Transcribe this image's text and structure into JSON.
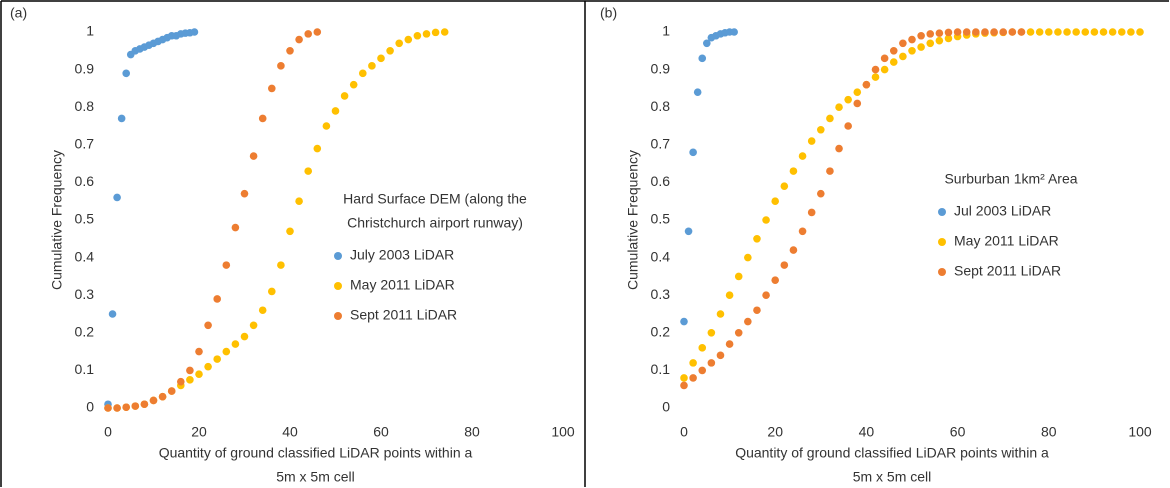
{
  "chart_data": [
    {
      "type": "scatter",
      "panel_label": "(a)",
      "ylabel": "Cumulative Frequency",
      "xlabel": [
        "Quantity of ground classified LiDAR points within a",
        "5m x 5m cell"
      ],
      "legend_title": [
        "Hard Surface DEM (along the",
        "Christchurch airport runway)"
      ],
      "xlim": [
        0,
        100
      ],
      "xticks": [
        0,
        20,
        40,
        60,
        80,
        100
      ],
      "ylim": [
        0,
        1
      ],
      "yticks": [
        0,
        0.1,
        0.2,
        0.3,
        0.4,
        0.5,
        0.6,
        0.7,
        0.8,
        0.9,
        1
      ],
      "series": [
        {
          "name": "July 2003 LiDAR",
          "color": "#5b9bd5",
          "x": [
            0,
            1,
            2,
            3,
            4,
            5,
            6,
            7,
            8,
            9,
            10,
            11,
            12,
            13,
            14,
            15,
            16,
            17,
            18,
            19
          ],
          "values": [
            0.01,
            0.25,
            0.56,
            0.77,
            0.89,
            0.94,
            0.95,
            0.955,
            0.96,
            0.965,
            0.97,
            0.975,
            0.98,
            0.985,
            0.99,
            0.99,
            0.995,
            0.997,
            0.998,
            1
          ]
        },
        {
          "name": "May 2011 LiDAR",
          "color": "#ffc000",
          "x": [
            0,
            2,
            4,
            6,
            8,
            10,
            12,
            14,
            16,
            18,
            20,
            22,
            24,
            26,
            28,
            30,
            32,
            34,
            36,
            38,
            40,
            42,
            44,
            46,
            48,
            50,
            52,
            54,
            56,
            58,
            60,
            62,
            64,
            66,
            68,
            70,
            72,
            74
          ],
          "values": [
            0,
            0,
            0.002,
            0.005,
            0.01,
            0.02,
            0.03,
            0.045,
            0.06,
            0.075,
            0.09,
            0.11,
            0.13,
            0.15,
            0.17,
            0.19,
            0.22,
            0.26,
            0.31,
            0.38,
            0.47,
            0.55,
            0.63,
            0.69,
            0.75,
            0.79,
            0.83,
            0.86,
            0.89,
            0.91,
            0.93,
            0.95,
            0.97,
            0.98,
            0.99,
            0.995,
            0.999,
            1
          ]
        },
        {
          "name": "Sept 2011 LiDAR",
          "color": "#ed7d31",
          "x": [
            0,
            2,
            4,
            6,
            8,
            10,
            12,
            14,
            16,
            18,
            20,
            22,
            24,
            26,
            28,
            30,
            32,
            34,
            36,
            38,
            40,
            42,
            44,
            46
          ],
          "values": [
            0,
            0,
            0.002,
            0.005,
            0.01,
            0.02,
            0.03,
            0.045,
            0.07,
            0.1,
            0.15,
            0.22,
            0.29,
            0.38,
            0.48,
            0.57,
            0.67,
            0.77,
            0.85,
            0.91,
            0.95,
            0.98,
            0.995,
            1
          ]
        }
      ]
    },
    {
      "type": "scatter",
      "panel_label": "(b)",
      "ylabel": "Cumulative Frequency",
      "xlabel": [
        "Quantity of ground classified LiDAR points within a",
        "5m x 5m cell"
      ],
      "legend_title": [
        "Surburban 1km² Area"
      ],
      "xlim": [
        0,
        100
      ],
      "xticks": [
        0,
        20,
        40,
        60,
        80,
        100
      ],
      "ylim": [
        0,
        1
      ],
      "yticks": [
        0,
        0.1,
        0.2,
        0.3,
        0.4,
        0.5,
        0.6,
        0.7,
        0.8,
        0.9,
        1
      ],
      "series": [
        {
          "name": "Jul 2003 LiDAR",
          "color": "#5b9bd5",
          "x": [
            0,
            1,
            2,
            3,
            4,
            5,
            6,
            7,
            8,
            9,
            10,
            11
          ],
          "values": [
            0.23,
            0.47,
            0.68,
            0.84,
            0.93,
            0.97,
            0.985,
            0.99,
            0.995,
            0.998,
            1,
            1
          ]
        },
        {
          "name": "May 2011 LiDAR",
          "color": "#ffc000",
          "x": [
            0,
            2,
            4,
            6,
            8,
            10,
            12,
            14,
            16,
            18,
            20,
            22,
            24,
            26,
            28,
            30,
            32,
            34,
            36,
            38,
            40,
            42,
            44,
            46,
            48,
            50,
            52,
            54,
            56,
            58,
            60,
            62,
            64,
            66,
            68,
            70,
            72,
            74,
            76,
            78,
            80,
            82,
            84,
            86,
            88,
            90,
            92,
            94,
            96,
            98,
            100
          ],
          "values": [
            0.08,
            0.12,
            0.16,
            0.2,
            0.25,
            0.3,
            0.35,
            0.4,
            0.45,
            0.5,
            0.55,
            0.59,
            0.63,
            0.67,
            0.71,
            0.74,
            0.77,
            0.8,
            0.82,
            0.84,
            0.86,
            0.88,
            0.9,
            0.92,
            0.935,
            0.95,
            0.96,
            0.97,
            0.977,
            0.983,
            0.988,
            0.992,
            0.995,
            0.997,
            0.998,
            0.999,
            1,
            1,
            1,
            1,
            1,
            1,
            1,
            1,
            1,
            1,
            1,
            1,
            1,
            1,
            1
          ]
        },
        {
          "name": "Sept 2011 LiDAR",
          "color": "#ed7d31",
          "x": [
            0,
            2,
            4,
            6,
            8,
            10,
            12,
            14,
            16,
            18,
            20,
            22,
            24,
            26,
            28,
            30,
            32,
            34,
            36,
            38,
            40,
            42,
            44,
            46,
            48,
            50,
            52,
            54,
            56,
            58,
            60,
            62,
            64,
            66,
            68,
            70,
            72,
            74
          ],
          "values": [
            0.06,
            0.08,
            0.1,
            0.12,
            0.14,
            0.17,
            0.2,
            0.23,
            0.26,
            0.3,
            0.34,
            0.38,
            0.42,
            0.47,
            0.52,
            0.57,
            0.63,
            0.69,
            0.75,
            0.81,
            0.86,
            0.9,
            0.93,
            0.95,
            0.97,
            0.98,
            0.99,
            0.995,
            0.997,
            0.999,
            1,
            1,
            1,
            1,
            1,
            1,
            1,
            1
          ]
        }
      ]
    }
  ]
}
